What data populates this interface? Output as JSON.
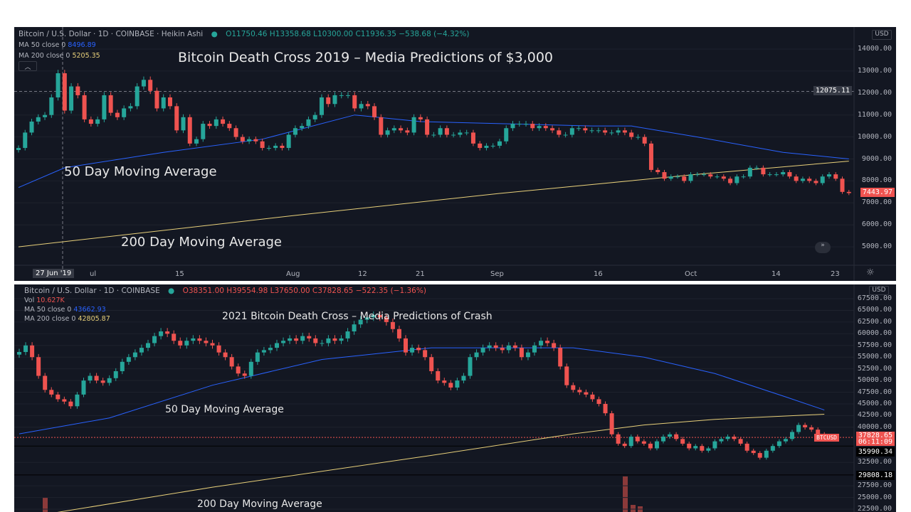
{
  "chart_data": [
    {
      "type": "candlestick",
      "title": "Bitcoin Death Cross 2019 – Media Predictions of $3,000",
      "header": {
        "symbol": "Bitcoin / U.S. Dollar · 1D · COINBASE · Heikin Ashi",
        "open": "O11750.46",
        "high": "H13358.68",
        "low": "L10300.00",
        "close": "C11936.35",
        "change": "−538.68 (−4.32%)"
      },
      "ma50_label": "MA 50 close 0",
      "ma50_value": "8496.89",
      "ma200_label": "MA 200 close 0",
      "ma200_value": "5205.35",
      "annotations": [
        "50 Day Moving Average",
        "200 Day Moving Average"
      ],
      "currency": "USD",
      "ylim": [
        4500,
        14500
      ],
      "y_ticks": [
        "14000.00",
        "13000.00",
        "12000.00",
        "11000.00",
        "10000.00",
        "9000.00",
        "8000.00",
        "7000.00",
        "6000.00",
        "5000.00"
      ],
      "x_ticks": [
        "ul",
        "15",
        "Aug",
        "12",
        "21",
        "Sep",
        "16",
        "Oct",
        "14",
        "23"
      ],
      "crosshair": {
        "date": "27 Jun '19",
        "price": "12075.11"
      },
      "last_price": "7443.97",
      "start_date": "2019-06-20",
      "closes": [
        9500,
        10200,
        10700,
        10900,
        11000,
        11800,
        12900,
        11200,
        12300,
        11900,
        10800,
        10600,
        10800,
        11900,
        11100,
        10900,
        11300,
        11400,
        12300,
        12600,
        12100,
        11300,
        11800,
        11400,
        10300,
        10900,
        9700,
        9900,
        10600,
        10500,
        10800,
        10600,
        10400,
        10000,
        9800,
        9900,
        9800,
        9500,
        9500,
        9600,
        9500,
        10100,
        10400,
        10500,
        10800,
        11000,
        11800,
        11500,
        11900,
        11900,
        11900,
        11300,
        11500,
        11400,
        10900,
        10100,
        10300,
        10400,
        10300,
        10200,
        10900,
        10800,
        10100,
        10100,
        10400,
        10100,
        10100,
        10200,
        10200,
        9700,
        9500,
        9600,
        9600,
        9800,
        10400,
        10600,
        10600,
        10600,
        10400,
        10500,
        10400,
        10300,
        10100,
        10100,
        10400,
        10400,
        10300,
        10300,
        10300,
        10200,
        10200,
        10300,
        10200,
        10000,
        10000,
        9700,
        8500,
        8400,
        8100,
        8200,
        8200,
        8000,
        8300,
        8300,
        8300,
        8200,
        8200,
        8100,
        7900,
        8200,
        8200,
        8600,
        8600,
        8300,
        8300,
        8300,
        8400,
        8200,
        8000,
        8100,
        8000,
        7900,
        8200,
        8300,
        8100,
        7500,
        7444
      ],
      "ma50": [
        [
          0,
          7700
        ],
        [
          7,
          8600
        ],
        [
          22,
          9300
        ],
        [
          37,
          9900
        ],
        [
          51,
          11000
        ],
        [
          61,
          10700
        ],
        [
          87,
          10500
        ],
        [
          93,
          10500
        ],
        [
          103,
          10000
        ],
        [
          116,
          9300
        ],
        [
          126,
          9000
        ]
      ],
      "ma200": [
        [
          0,
          5000
        ],
        [
          42,
          6430
        ],
        [
          73,
          7430
        ],
        [
          103,
          8300
        ],
        [
          126,
          8900
        ]
      ],
      "colors": {
        "up": "#26a69a",
        "down": "#ef5350",
        "ma50": "#2962ff",
        "ma200": "#e8d07a",
        "bg": "#131722"
      }
    },
    {
      "type": "candlestick",
      "title": "2021 Bitcoin Death Cross – Media Predictions of Crash",
      "header": {
        "symbol": "Bitcoin / U.S. Dollar · 1D · COINBASE",
        "open": "O38351.00",
        "high": "H39554.98",
        "low": "L37650.00",
        "close": "C37828.65",
        "change": "−522.35 (−1.36%)"
      },
      "vol_label": "Vol",
      "vol_value": "10.627K",
      "ma50_label": "MA 50 close 0",
      "ma50_value": "43662.93",
      "ma200_label": "MA 200 close 0",
      "ma200_value": "42805.87",
      "annotations": [
        "50 Day Moving Average",
        "200 Day Moving Average"
      ],
      "currency": "USD",
      "ylim": [
        21500,
        69000
      ],
      "y_ticks": [
        "67500.00",
        "65000.00",
        "62500.00",
        "60000.00",
        "57500.00",
        "55000.00",
        "52500.00",
        "50000.00",
        "47500.00",
        "45000.00",
        "42500.00",
        "40000.00",
        "32500.00",
        "27500.00",
        "25000.00",
        "22500.00"
      ],
      "price_lines": [
        "35990.34",
        "29808.18"
      ],
      "last_price": "37828.65",
      "countdown": "06:11:09",
      "symbol_tag": "BTCUSD",
      "closes": [
        56100,
        57500,
        55000,
        51000,
        48000,
        47000,
        46000,
        45500,
        44500,
        47000,
        50000,
        51000,
        50000,
        49500,
        50500,
        52000,
        54000,
        55000,
        56000,
        57000,
        58000,
        59500,
        60500,
        60000,
        58500,
        57500,
        58500,
        59000,
        58500,
        58000,
        57500,
        56000,
        55000,
        53000,
        51500,
        51000,
        54000,
        56000,
        56500,
        57000,
        58000,
        58500,
        59000,
        58500,
        59500,
        59000,
        58000,
        58000,
        59000,
        58500,
        59000,
        60500,
        62000,
        63000,
        63500,
        64000,
        63500,
        62500,
        61000,
        59000,
        56000,
        57000,
        56500,
        55000,
        52000,
        50000,
        49500,
        48500,
        50000,
        51000,
        55000,
        56000,
        57000,
        57500,
        57000,
        56500,
        57500,
        57000,
        55000,
        56000,
        57500,
        58500,
        58000,
        57000,
        53000,
        49000,
        48000,
        47500,
        47000,
        46000,
        45000,
        43000,
        38500,
        36500,
        36000,
        38000,
        37000,
        36500,
        35500,
        37000,
        38000,
        38500,
        37500,
        36500,
        35500,
        36000,
        35000,
        35500,
        37000,
        37500,
        38000,
        37500,
        36500,
        35000,
        34500,
        33500,
        35000,
        36000,
        37000,
        37500,
        39000,
        40500,
        40000,
        39500,
        38500,
        37828.65
      ],
      "ma50": [
        [
          0,
          38600
        ],
        [
          14,
          42000
        ],
        [
          30,
          49000
        ],
        [
          47,
          54500
        ],
        [
          64,
          57000
        ],
        [
          86,
          57000
        ],
        [
          97,
          55000
        ],
        [
          108,
          51500
        ],
        [
          119,
          46500
        ],
        [
          125,
          43700
        ]
      ],
      "ma200": [
        [
          0,
          20500
        ],
        [
          30,
          27200
        ],
        [
          64,
          34000
        ],
        [
          86,
          38600
        ],
        [
          97,
          40500
        ],
        [
          108,
          41700
        ],
        [
          125,
          42800
        ]
      ],
      "colors": {
        "up": "#26a69a",
        "down": "#ef5350",
        "ma50": "#2962ff",
        "ma200": "#e8d07a",
        "bg": "#131722"
      }
    }
  ]
}
